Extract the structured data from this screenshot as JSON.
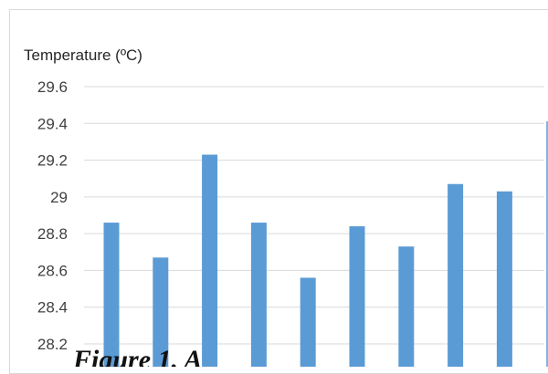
{
  "chart_data": {
    "type": "bar",
    "ylabel": "Temperature (ºC)",
    "ylim": [
      28.1,
      29.6
    ],
    "yticks": [
      28.2,
      28.4,
      28.6,
      28.8,
      29,
      29.2,
      29.4,
      29.6
    ],
    "ytick_labels": [
      "28.2",
      "28.4",
      "28.6",
      "28.8",
      "29",
      "29.2",
      "29.4",
      "29.6"
    ],
    "values": [
      28.86,
      28.67,
      29.23,
      28.86,
      28.56,
      28.84,
      28.73,
      29.07,
      29.03
    ],
    "grid": true,
    "bar_color": "#5b9bd5",
    "grid_color": "#d9d9d9"
  },
  "caption": "Figure 1. A"
}
